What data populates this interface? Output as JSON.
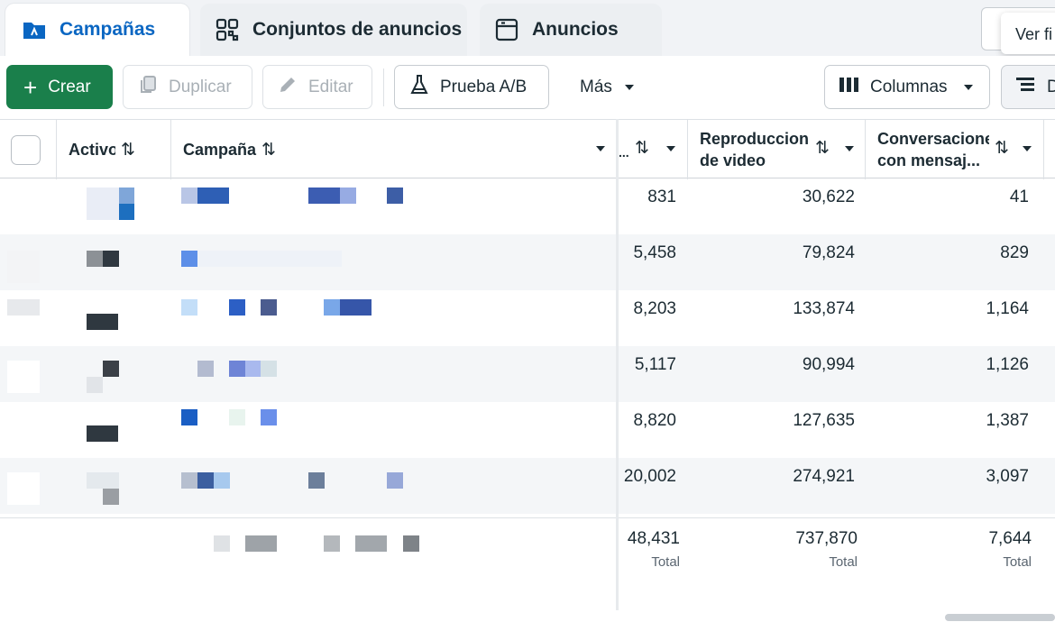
{
  "tabs": [
    {
      "label": "Campañas",
      "icon": "campaign-folder-icon",
      "active": true
    },
    {
      "label": "Conjuntos de anuncios",
      "icon": "grid-icon",
      "active": false
    },
    {
      "label": "Anuncios",
      "icon": "ad-window-icon",
      "active": false
    }
  ],
  "tooltip": "Ver fi",
  "toolbar": {
    "create": "Crear",
    "duplicate": "Duplicar",
    "edit": "Editar",
    "ab_test": "Prueba A/B",
    "more": "Más",
    "columns": "Columnas",
    "breakdown": "D"
  },
  "table": {
    "headers": {
      "active": "Activo",
      "campaign": "Campaña",
      "metric1": "...",
      "video_plays": "Reproduccion de video",
      "conversations": "Conversacione con mensaj..."
    },
    "rows": [
      {
        "metric1": "831",
        "video_plays": "30,622",
        "conversations": "41"
      },
      {
        "metric1": "5,458",
        "video_plays": "79,824",
        "conversations": "829"
      },
      {
        "metric1": "8,203",
        "video_plays": "133,874",
        "conversations": "1,164"
      },
      {
        "metric1": "5,117",
        "video_plays": "90,994",
        "conversations": "1,126"
      },
      {
        "metric1": "8,820",
        "video_plays": "127,635",
        "conversations": "1,387"
      },
      {
        "metric1": "20,002",
        "video_plays": "274,921",
        "conversations": "3,097"
      }
    ],
    "totals": {
      "metric1": "48,431",
      "video_plays": "737,870",
      "conversations": "7,644",
      "label": "Total"
    }
  },
  "colors": {
    "accent": "#0a66c2",
    "create_green": "#1a7f4b"
  }
}
